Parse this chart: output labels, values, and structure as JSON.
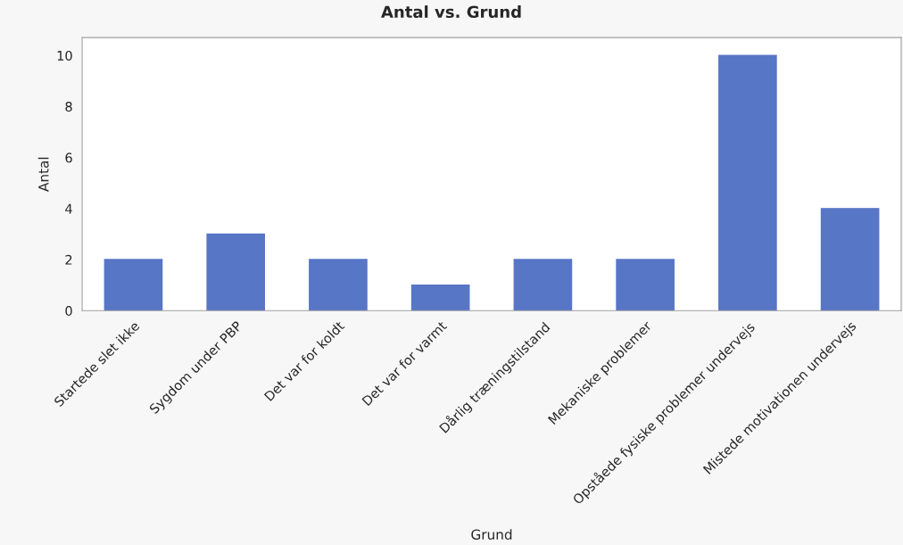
{
  "chart_data": {
    "type": "bar",
    "title": "Antal vs. Grund",
    "xlabel": "Grund",
    "ylabel": "Antal",
    "categories": [
      "Startede slet ikke",
      "Sygdom under PBP",
      "Det var for koldt",
      "Det var for varmt",
      "Dårlig træningstilstand",
      "Mekaniske problemer",
      "Opståede fysiske problemer undervejs",
      "Mistede motivationen undervejs"
    ],
    "values": [
      2,
      3,
      2,
      1,
      2,
      2,
      10,
      4
    ],
    "color": "#5876c6",
    "ylim": [
      0,
      10.7
    ],
    "yticks": [
      0,
      2,
      4,
      6,
      8,
      10
    ],
    "grid": false
  }
}
